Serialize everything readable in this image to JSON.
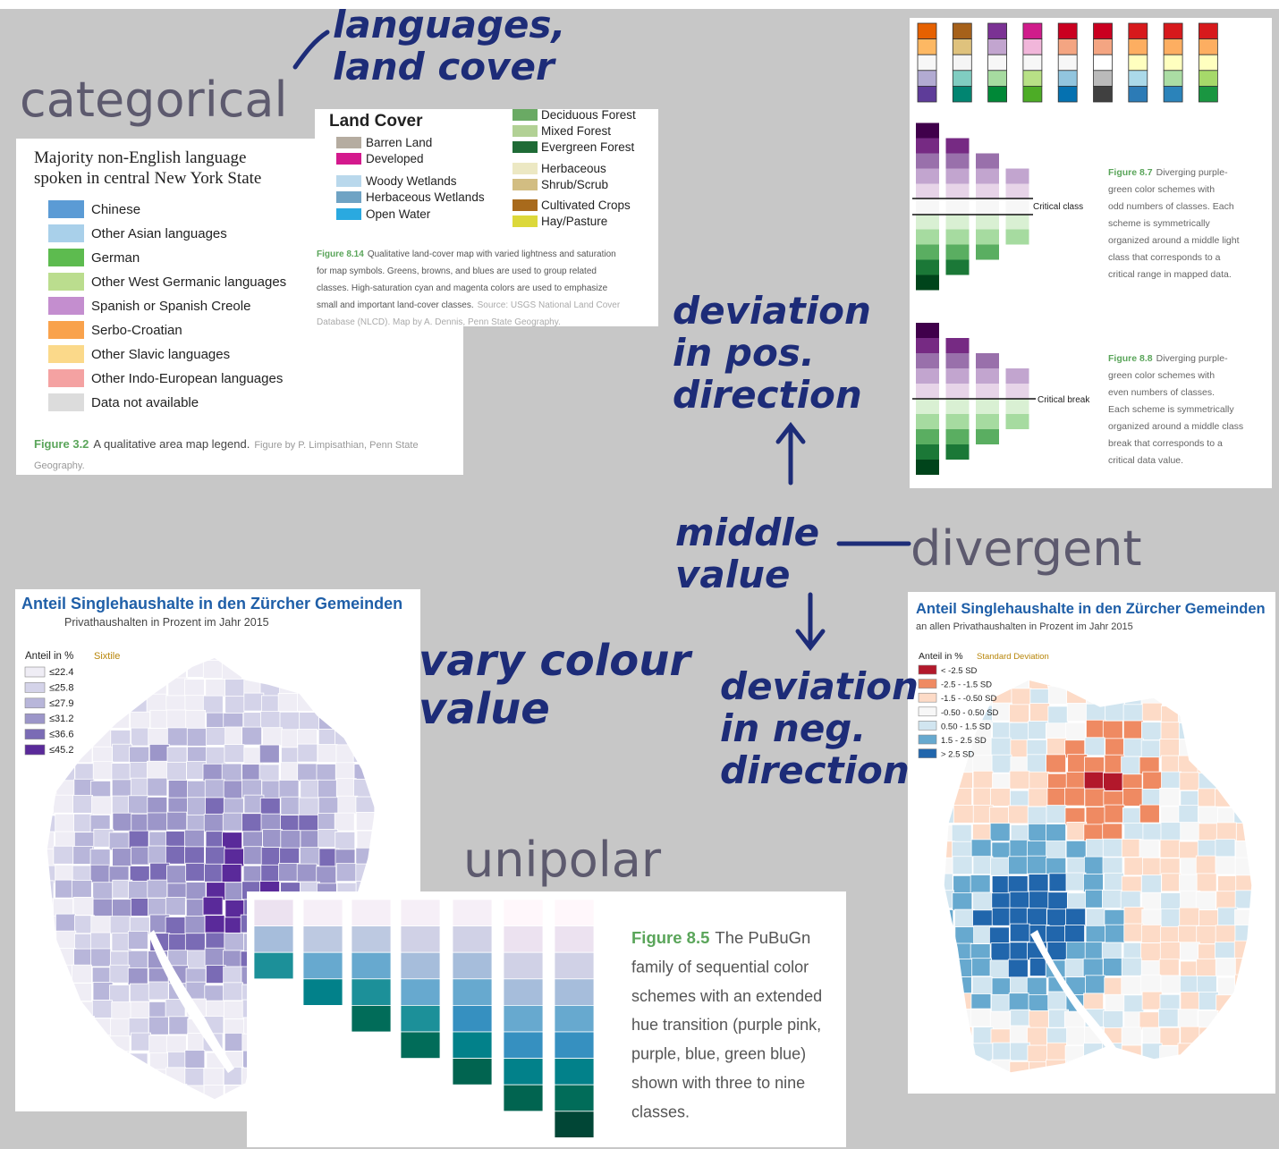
{
  "notes": {
    "categorical": "categorical",
    "divergent": "divergent",
    "unipolar": "unipolar"
  },
  "handwriting": {
    "top": [
      "languages,",
      "land cover"
    ],
    "positive": [
      "deviation",
      "in pos.",
      "direction"
    ],
    "middle": [
      "middle",
      "value"
    ],
    "negative": [
      "deviation",
      "in neg.",
      "direction"
    ],
    "vary": [
      "vary colour",
      "value"
    ]
  },
  "language_legend": {
    "title_lines": [
      "Majority non-English language",
      "spoken in central New York State"
    ],
    "items": [
      "Chinese",
      "Other Asian languages",
      "German",
      "Other West Germanic languages",
      "Spanish or Spanish Creole",
      "Serbo-Croatian",
      "Other Slavic languages",
      "Other Indo-European languages",
      "Data not available"
    ],
    "caption_label": "Figure 3.2",
    "caption": "A qualitative area map legend.",
    "credit_lines": [
      "Figure by P. Limpisathian, Penn State",
      "Geography."
    ]
  },
  "land_cover": {
    "title": "Land Cover",
    "left_items": [
      "Barren Land",
      "Developed",
      "Woody Wetlands",
      "Herbaceous Wetlands",
      "Open Water"
    ],
    "right_items": [
      "Deciduous Forest",
      "Mixed Forest",
      "Evergreen Forest",
      "Herbaceous",
      "Shrub/Scrub",
      "Cultivated Crops",
      "Hay/Pasture"
    ],
    "caption_label": "Figure 8.14",
    "caption_lines": [
      "Qualitative land-cover map with varied lightness and saturation",
      "for map symbols. Greens, browns, and blues are used to group related",
      "classes. High-saturation cyan and magenta colors are used to emphasize",
      "small and important land-cover classes."
    ],
    "source_lines": [
      "Source: USGS National Land Cover",
      "Database (NLCD). Map by A. Dennis, Penn State Geography."
    ]
  },
  "diverging": {
    "fig87_label": "Figure 8.7",
    "fig87_lines": [
      "Diverging purple-",
      "green color schemes with",
      "odd numbers of classes. Each",
      "scheme is symmetrically",
      "organized around a middle light",
      "class that corresponds to a",
      "critical range in mapped data."
    ],
    "critical_class": "Critical class",
    "fig88_label": "Figure 8.8",
    "fig88_lines": [
      "Diverging purple-",
      "green color schemes with",
      "even numbers of classes.",
      "Each scheme is symmetrically",
      "organized around a middle class",
      "break that corresponds to a",
      "critical data value."
    ],
    "critical_break": "Critical break"
  },
  "map_left": {
    "title": "Anteil Singlehaushalte in den Zürcher Gemeinden",
    "subtitle": "Privathaushalten in Prozent im Jahr 2015",
    "legend_title": "Anteil in %",
    "method": "Sixtile",
    "classes": [
      "≤22.4",
      "≤25.8",
      "≤27.9",
      "≤31.2",
      "≤36.6",
      "≤45.2"
    ]
  },
  "map_right": {
    "title": "Anteil Singlehaushalte in den Zürcher Gemeinden",
    "subtitle": "an allen Privathaushalten in Prozent im Jahr 2015",
    "legend_title": "Anteil in %",
    "method": "Standard Deviation",
    "classes": [
      "< -2.5 SD",
      "-2.5 - -1.5 SD",
      "-1.5 - -0.50 SD",
      "-0.50 - 0.50 SD",
      "0.50 - 1.5 SD",
      "1.5 - 2.5 SD",
      "> 2.5 SD"
    ]
  },
  "pubugn": {
    "caption_label": "Figure 8.5",
    "caption_lines": [
      "The PuBuGn",
      "family of sequential color",
      "schemes with an extended",
      "hue transition (purple pink,",
      "purple, blue, green blue)",
      "shown with three to nine",
      "classes."
    ]
  }
}
